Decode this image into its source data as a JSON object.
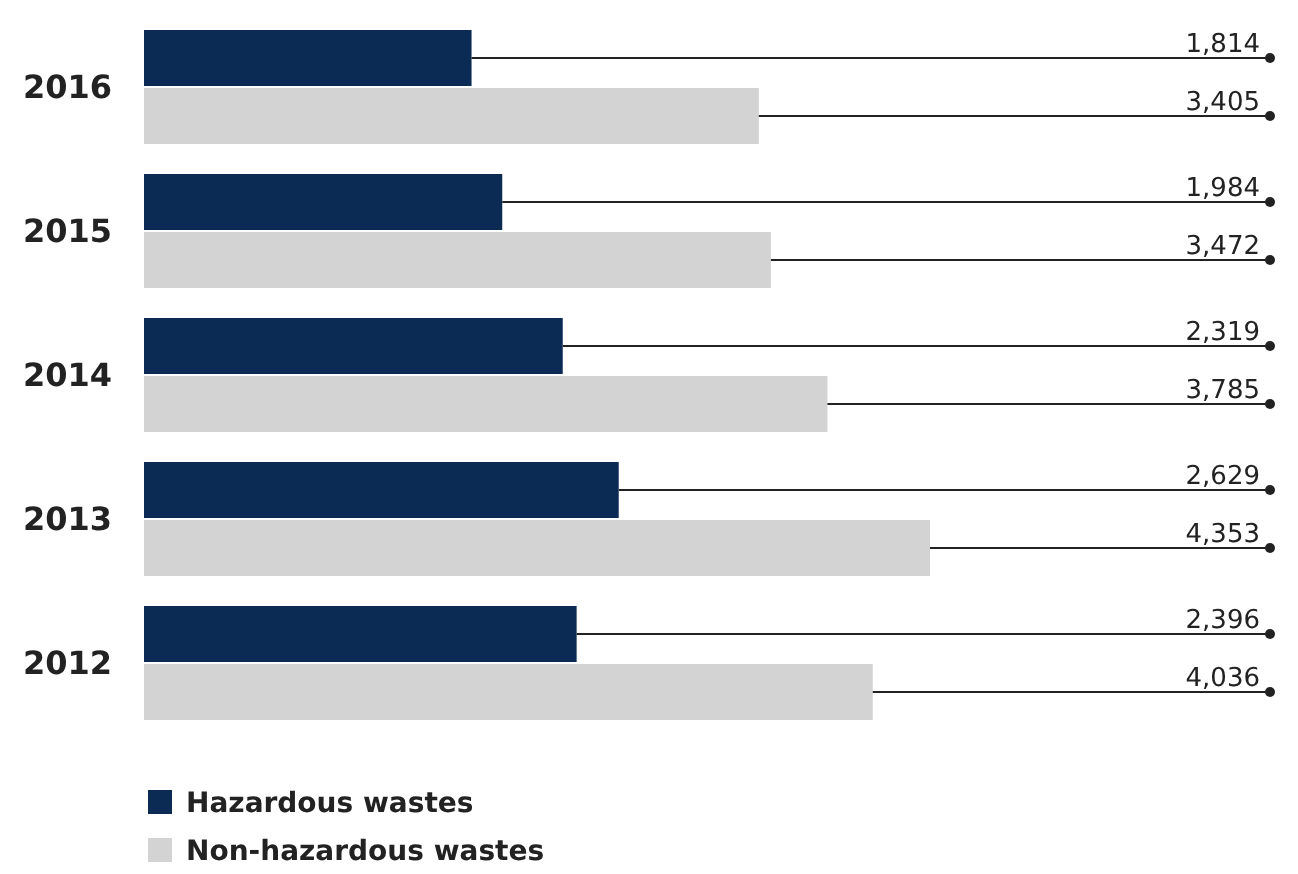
{
  "chart_data": {
    "type": "bar",
    "orientation": "horizontal",
    "categories": [
      "2016",
      "2015",
      "2014",
      "2013",
      "2012"
    ],
    "series": [
      {
        "name": "Hazardous wastes",
        "color": "#0b2a54",
        "values": [
          1814,
          1984,
          2319,
          2629,
          2396
        ],
        "value_labels": [
          "1,814",
          "1,984",
          "2,319",
          "2,629",
          "2,396"
        ]
      },
      {
        "name": "Non-hazardous wastes",
        "color": "#d3d3d3",
        "values": [
          3405,
          3472,
          3785,
          4353,
          4036
        ],
        "value_labels": [
          "3,405",
          "3,472",
          "3,785",
          "4,353",
          "4,036"
        ]
      }
    ],
    "legend": "bottom"
  }
}
